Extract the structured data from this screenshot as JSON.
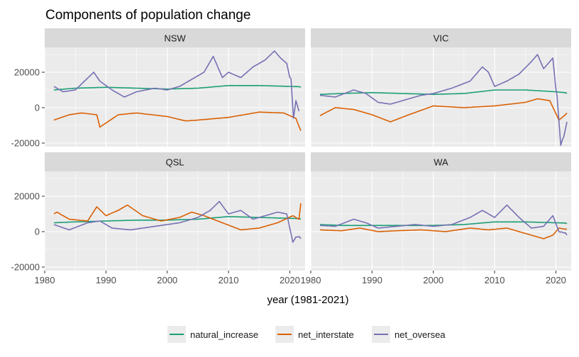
{
  "chart_data": {
    "type": "line",
    "title": "Components of population change",
    "xlabel": "year (1981-2021)",
    "ylabel": "",
    "xlim": [
      1980,
      2022.5
    ],
    "ylim": [
      -22000,
      34000
    ],
    "x_ticks": [
      1980,
      1990,
      2000,
      2010,
      2020
    ],
    "y_ticks": [
      -20000,
      0,
      20000
    ],
    "grid": true,
    "legend_position": "bottom",
    "colors": {
      "natural_increase": "#1b9e77",
      "net_interstate": "#d95f02",
      "net_oversea": "#7570b3",
      "panel_bg": "#ebebeb",
      "strip_bg": "#d9d9d9",
      "grid": "#ffffff"
    },
    "series_names": [
      "natural_increase",
      "net_interstate",
      "net_oversea"
    ],
    "panels": [
      {
        "name": "NSW",
        "series": [
          {
            "name": "natural_increase",
            "x": [
              1981.5,
              1985,
              1990,
              1995,
              2000,
              2005,
              2010,
              2015,
              2020,
              2021.8
            ],
            "y": [
              10000,
              11000,
              11500,
              11000,
              10500,
              11000,
              12500,
              12500,
              12000,
              11500
            ]
          },
          {
            "name": "net_interstate",
            "x": [
              1981.5,
              1984,
              1986,
              1988.5,
              1989,
              1992,
              1995,
              2000,
              2003,
              2005,
              2010,
              2015,
              2019,
              2021,
              2021.8
            ],
            "y": [
              -7000,
              -4000,
              -3000,
              -4000,
              -11000,
              -4000,
              -3000,
              -5000,
              -7500,
              -7000,
              -5500,
              -2500,
              -3000,
              -6000,
              -13000
            ]
          },
          {
            "name": "net_oversea",
            "x": [
              1981.5,
              1983,
              1985,
              1988,
              1989,
              1991,
              1993,
              1995,
              1998,
              2000,
              2002,
              2004,
              2006,
              2007.5,
              2009,
              2010,
              2012,
              2014,
              2016,
              2017.5,
              2018.5,
              2019.5,
              2020.2,
              2020.6,
              2021,
              2021.5
            ],
            "y": [
              12000,
              9000,
              10000,
              20000,
              15000,
              10000,
              6000,
              9000,
              11000,
              10000,
              12000,
              16000,
              20000,
              29000,
              17000,
              20000,
              17000,
              23000,
              27000,
              32000,
              28000,
              25000,
              15000,
              -8000,
              4000,
              -2000
            ]
          }
        ]
      },
      {
        "name": "VIC",
        "series": [
          {
            "name": "natural_increase",
            "x": [
              1981.5,
              1985,
              1990,
              1995,
              2000,
              2005,
              2010,
              2015,
              2020,
              2021.8
            ],
            "y": [
              7500,
              8000,
              8500,
              8000,
              7500,
              8000,
              10000,
              10000,
              9000,
              8000
            ]
          },
          {
            "name": "net_interstate",
            "x": [
              1981.5,
              1984,
              1987,
              1990,
              1993,
              1996,
              2000,
              2005,
              2010,
              2015,
              2017,
              2019,
              2020.5,
              2021.8
            ],
            "y": [
              -4500,
              0,
              -1000,
              -4000,
              -8000,
              -4000,
              1000,
              0,
              1000,
              3000,
              5000,
              4000,
              -7000,
              -3000
            ]
          },
          {
            "name": "net_oversea",
            "x": [
              1981.5,
              1984,
              1987,
              1989,
              1991,
              1993,
              1995,
              1998,
              2000,
              2003,
              2006,
              2008,
              2009,
              2010,
              2012,
              2014,
              2016,
              2017,
              2018,
              2019.5,
              2020.2,
              2020.8,
              2021.3,
              2021.8
            ],
            "y": [
              7000,
              6000,
              10000,
              8000,
              3000,
              2000,
              4000,
              7000,
              8000,
              11000,
              15000,
              23000,
              20000,
              12000,
              15000,
              19000,
              26000,
              30000,
              22000,
              28000,
              5000,
              -20000,
              -15000,
              -8000
            ]
          }
        ]
      },
      {
        "name": "QSL",
        "series": [
          {
            "name": "natural_increase",
            "x": [
              1981.5,
              1985,
              1990,
              1995,
              2000,
              2005,
              2010,
              2015,
              2020,
              2021.8
            ],
            "y": [
              5000,
              5500,
              6000,
              6500,
              6500,
              7000,
              8500,
              8000,
              7500,
              7000
            ]
          },
          {
            "name": "net_interstate",
            "x": [
              1981.5,
              1982,
              1984,
              1987,
              1988.5,
              1990,
              1992,
              1993.5,
              1996,
              1999,
              2002,
              2004,
              2006,
              2009,
              2012,
              2015,
              2018,
              2020.5,
              2021.5,
              2021.8
            ],
            "y": [
              10000,
              11000,
              7000,
              6000,
              14000,
              9000,
              12000,
              15000,
              9000,
              6000,
              8000,
              11000,
              9000,
              5000,
              1000,
              2000,
              5000,
              9000,
              7000,
              16000
            ]
          },
          {
            "name": "net_oversea",
            "x": [
              1981.5,
              1984,
              1987,
              1989,
              1991,
              1994,
              1998,
              2002,
              2005,
              2007,
              2008.5,
              2010,
              2012,
              2014,
              2016,
              2018,
              2019.5,
              2020.5,
              2021,
              2021.8
            ],
            "y": [
              4000,
              1000,
              5000,
              6000,
              2000,
              1000,
              3000,
              5000,
              8000,
              12000,
              17000,
              10000,
              12000,
              7000,
              9000,
              11000,
              10000,
              -6000,
              -3000,
              -4000
            ]
          }
        ]
      },
      {
        "name": "WA",
        "series": [
          {
            "name": "natural_increase",
            "x": [
              1981.5,
              1985,
              1990,
              1995,
              2000,
              2005,
              2010,
              2015,
              2020,
              2021.8
            ],
            "y": [
              4000,
              3500,
              3500,
              3500,
              3500,
              4000,
              5500,
              5500,
              5000,
              4500
            ]
          },
          {
            "name": "net_interstate",
            "x": [
              1981.5,
              1985,
              1988,
              1991,
              1994,
              1998,
              2002,
              2006,
              2009,
              2012,
              2015,
              2018,
              2019.5,
              2020.5,
              2021.8
            ],
            "y": [
              1000,
              500,
              2000,
              0,
              500,
              1000,
              0,
              2000,
              1000,
              2000,
              -1000,
              -4000,
              -2000,
              2000,
              1500
            ]
          },
          {
            "name": "net_oversea",
            "x": [
              1981.5,
              1984,
              1987,
              1989,
              1991,
              1994,
              1997,
              2000,
              2003,
              2006,
              2008,
              2010,
              2012,
              2014,
              2016,
              2018,
              2019.5,
              2020.5,
              2021.8
            ],
            "y": [
              3500,
              3000,
              7000,
              5000,
              2000,
              3000,
              4000,
              3000,
              4000,
              8000,
              12000,
              8000,
              15000,
              8000,
              2000,
              3000,
              9000,
              0,
              -2000
            ]
          }
        ]
      }
    ]
  }
}
